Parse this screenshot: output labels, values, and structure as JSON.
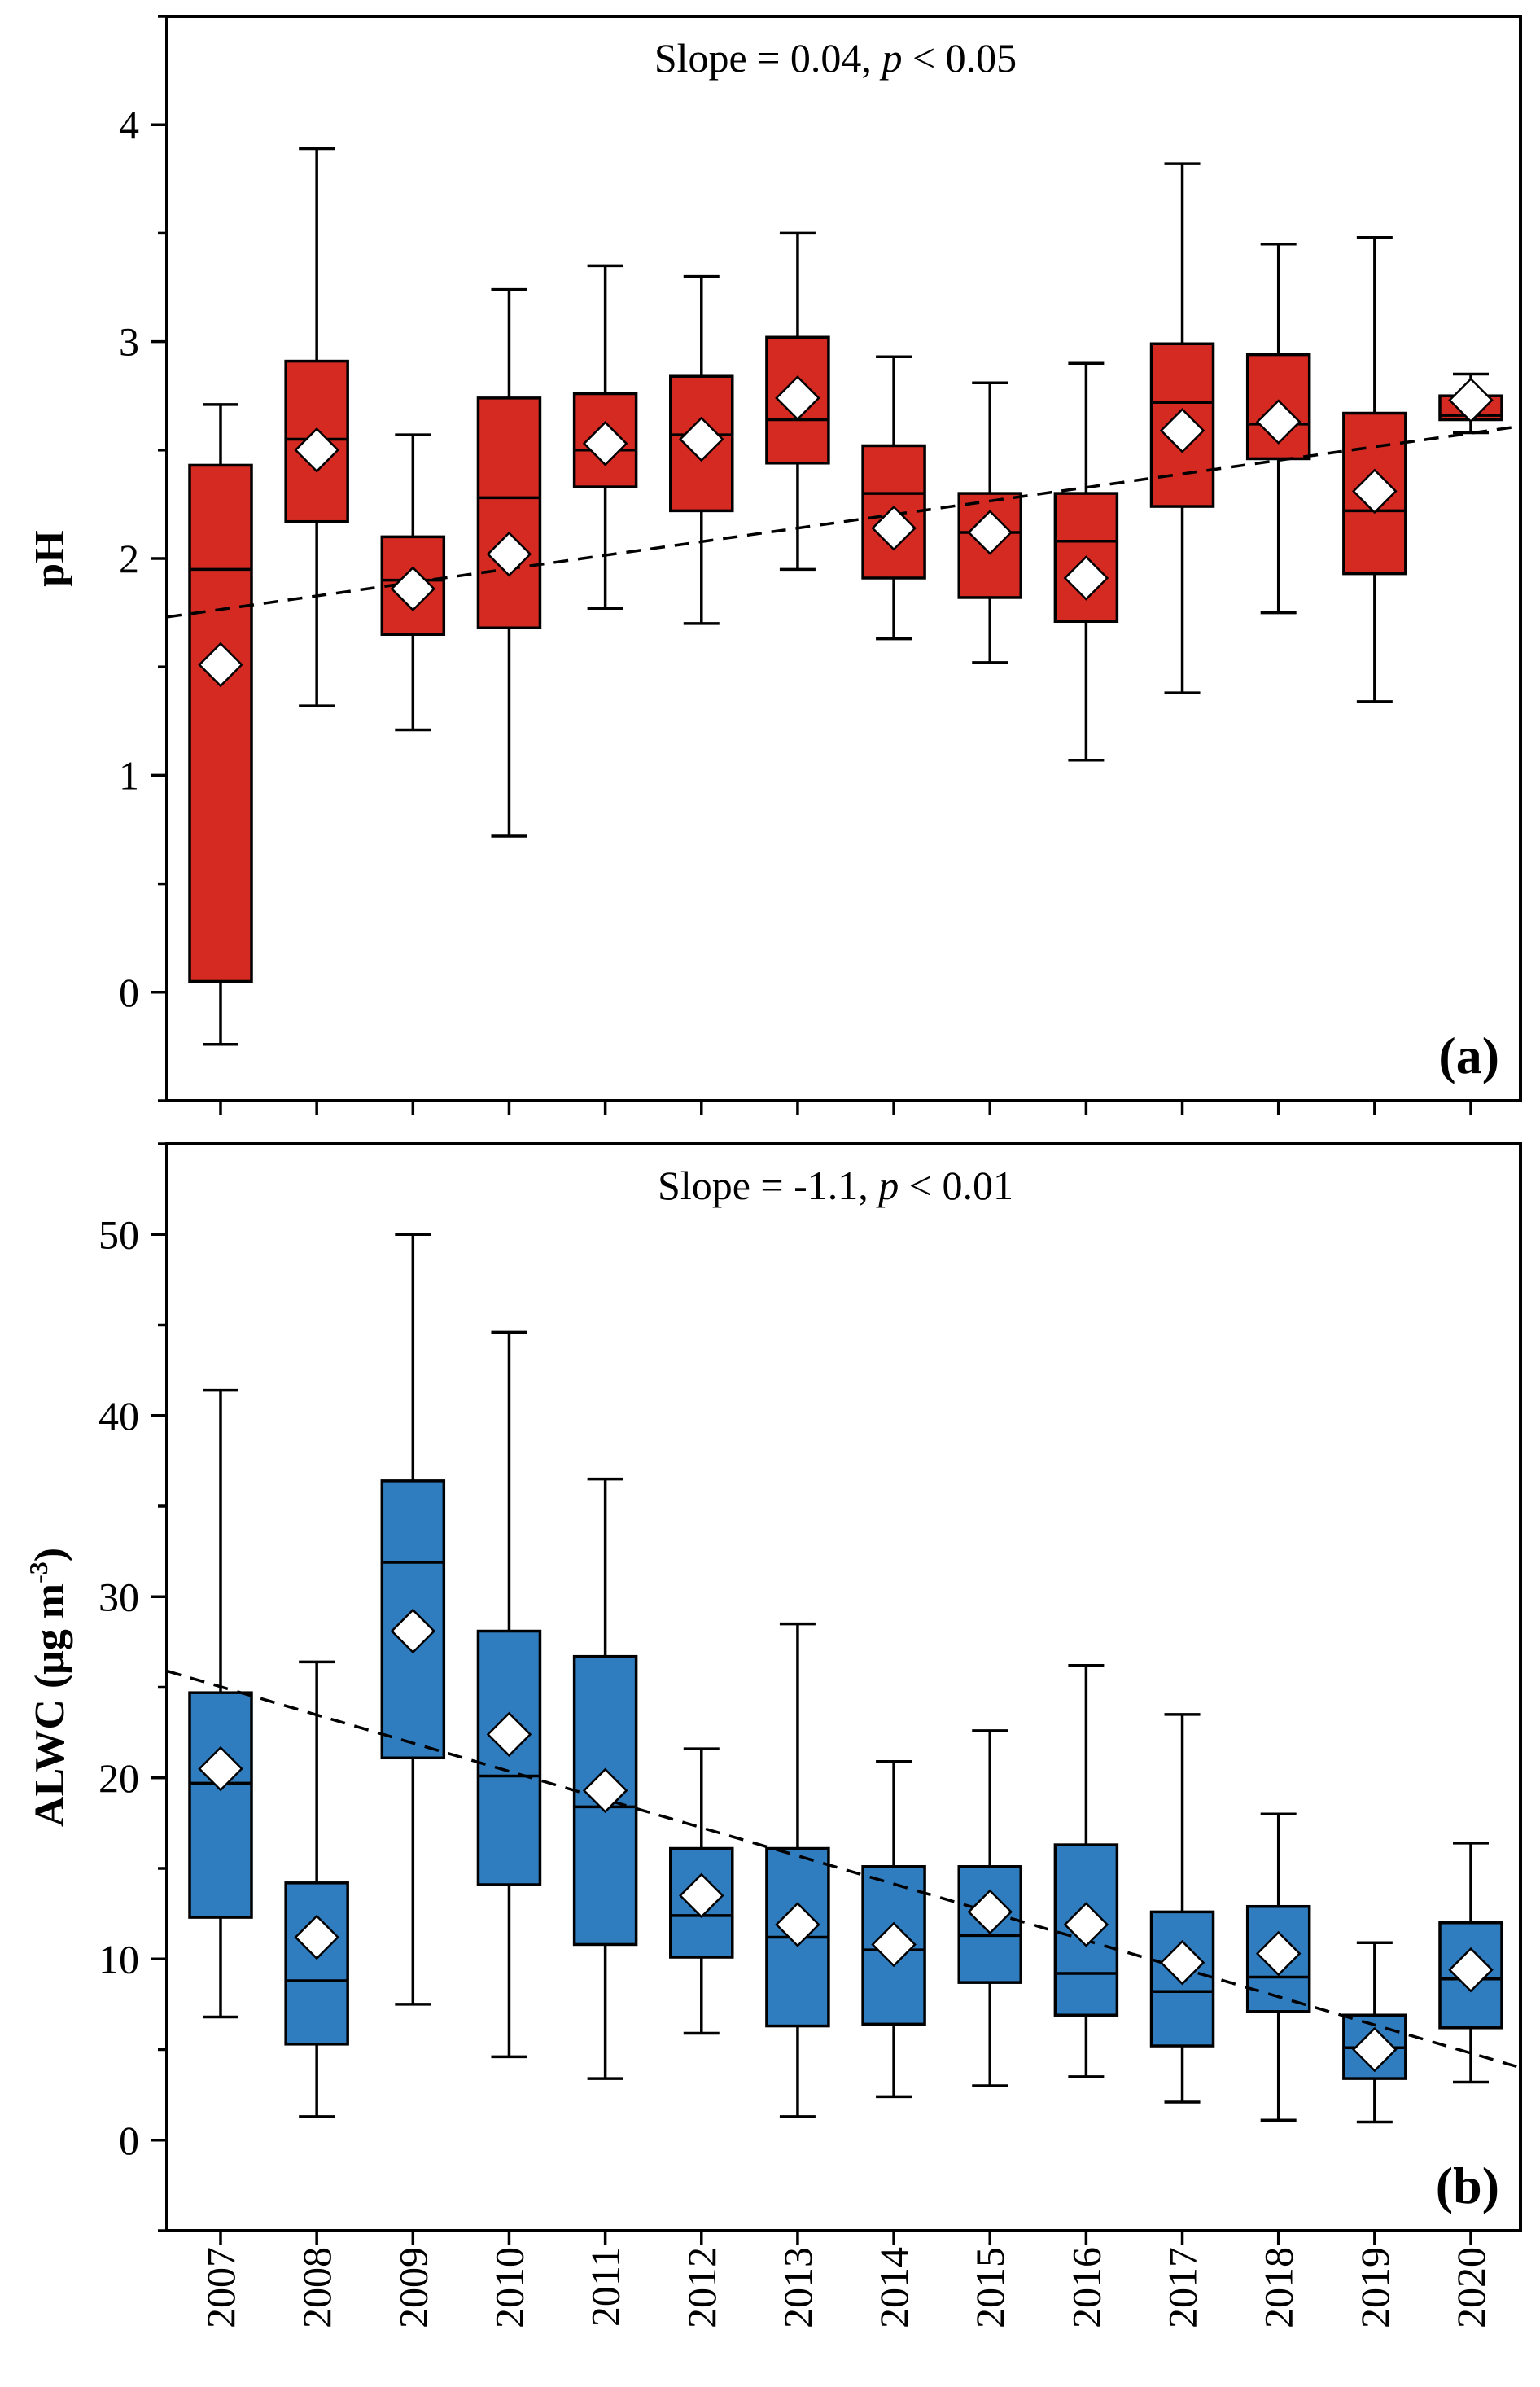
{
  "chart_data": [
    {
      "type": "box",
      "panel_label": "(a)",
      "annotation": "Slope = 0.04, p < 0.05",
      "annotation_parts": {
        "prefix": "Slope = 0.04, ",
        "italic": "p",
        "suffix": " < 0.05"
      },
      "ylabel": "pH",
      "ylabel_superscript": "",
      "ylabel_suffix": "",
      "ylim": [
        -0.5,
        4.5
      ],
      "yticks": [
        0,
        1,
        2,
        3,
        4
      ],
      "box_color": "#d42a22",
      "categories": [
        "2007",
        "2008",
        "2009",
        "2010",
        "2011",
        "2012",
        "2013",
        "2014",
        "2015",
        "2016",
        "2017",
        "2018",
        "2019",
        "2020"
      ],
      "whisker_low": [
        -0.24,
        1.32,
        1.21,
        0.72,
        1.77,
        1.7,
        1.95,
        1.63,
        1.52,
        1.07,
        1.38,
        1.75,
        1.34,
        2.58
      ],
      "q1": [
        0.05,
        2.17,
        1.65,
        1.68,
        2.33,
        2.22,
        2.44,
        1.91,
        1.82,
        1.71,
        2.24,
        2.46,
        1.93,
        2.64
      ],
      "median": [
        1.95,
        2.55,
        1.9,
        2.28,
        2.5,
        2.57,
        2.64,
        2.3,
        2.12,
        2.08,
        2.72,
        2.62,
        2.22,
        2.66
      ],
      "q3": [
        2.43,
        2.91,
        2.1,
        2.74,
        2.76,
        2.84,
        3.02,
        2.52,
        2.3,
        2.3,
        2.99,
        2.94,
        2.67,
        2.75
      ],
      "whisker_high": [
        2.71,
        3.89,
        2.57,
        3.24,
        3.35,
        3.3,
        3.5,
        2.93,
        2.81,
        2.9,
        3.82,
        3.45,
        3.48,
        2.85
      ],
      "mean": [
        1.51,
        2.5,
        1.86,
        2.02,
        2.53,
        2.55,
        2.74,
        2.14,
        2.12,
        1.91,
        2.59,
        2.63,
        2.31,
        2.73
      ],
      "trend": {
        "start": 1.73,
        "end": 2.61
      }
    },
    {
      "type": "box",
      "panel_label": "(b)",
      "annotation": "Slope = -1.1, p < 0.01",
      "annotation_parts": {
        "prefix": "Slope = -1.1, ",
        "italic": "p",
        "suffix": " < 0.01"
      },
      "ylabel": "ALWC (μg m",
      "ylabel_superscript": "-3",
      "ylabel_suffix": ")",
      "ylim": [
        -5,
        55
      ],
      "yticks": [
        0,
        10,
        20,
        30,
        40,
        50
      ],
      "box_color": "#2f7dbf",
      "categories": [
        "2007",
        "2008",
        "2009",
        "2010",
        "2011",
        "2012",
        "2013",
        "2014",
        "2015",
        "2016",
        "2017",
        "2018",
        "2019",
        "2020"
      ],
      "whisker_low": [
        6.8,
        1.3,
        7.5,
        4.6,
        3.4,
        5.9,
        1.3,
        2.4,
        3.0,
        3.5,
        2.1,
        1.1,
        1.0,
        3.2
      ],
      "q1": [
        12.3,
        5.3,
        21.1,
        14.1,
        10.8,
        10.1,
        6.3,
        6.4,
        8.7,
        6.9,
        5.2,
        7.1,
        3.4,
        6.2
      ],
      "median": [
        19.7,
        8.8,
        31.9,
        20.1,
        18.4,
        12.4,
        11.2,
        10.5,
        11.3,
        9.2,
        8.2,
        9.0,
        5.1,
        8.9
      ],
      "q3": [
        24.7,
        14.2,
        36.4,
        28.1,
        26.7,
        16.1,
        16.1,
        15.1,
        15.1,
        16.3,
        12.6,
        12.9,
        6.9,
        12.0
      ],
      "whisker_high": [
        41.4,
        26.4,
        50.0,
        44.6,
        36.5,
        21.6,
        28.5,
        20.9,
        22.6,
        26.2,
        23.5,
        18.0,
        10.9,
        16.4
      ],
      "mean": [
        20.5,
        11.2,
        28.1,
        22.4,
        19.3,
        13.5,
        11.9,
        10.8,
        12.6,
        11.9,
        9.8,
        10.3,
        5.0,
        9.4
      ],
      "trend": {
        "start": 25.9,
        "end": 4.0
      }
    }
  ]
}
